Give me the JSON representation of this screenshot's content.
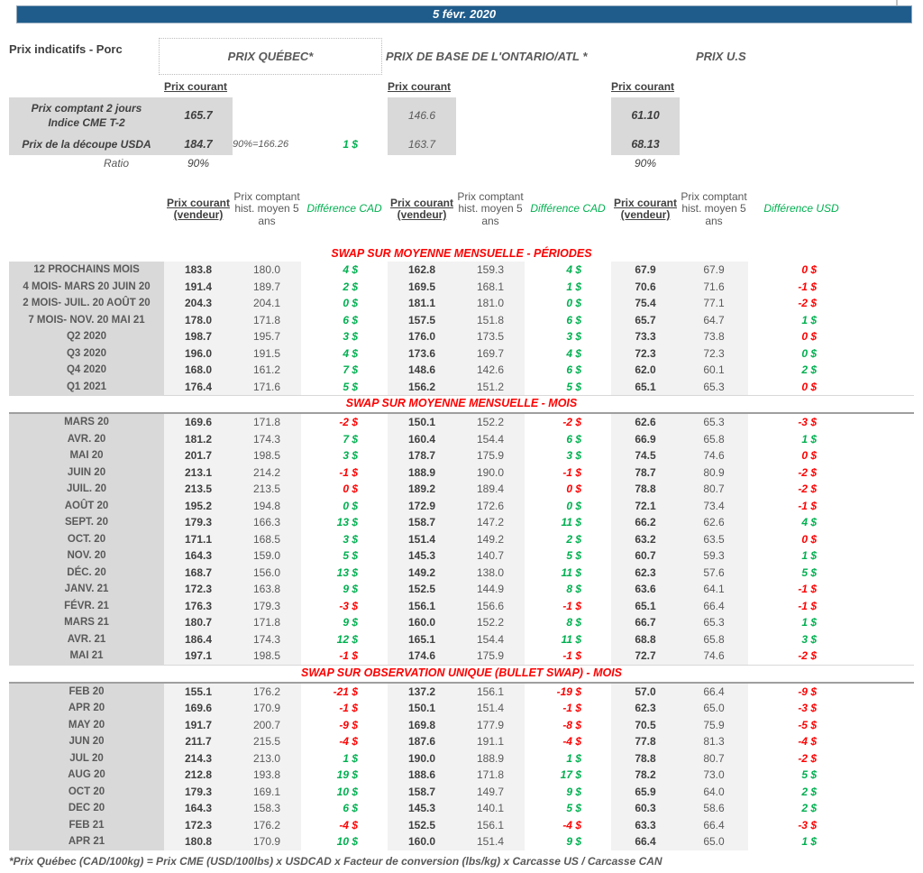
{
  "banner": {
    "date": "5 févr. 2020"
  },
  "header": {
    "title": "Prix indicatifs - Porc",
    "regions": {
      "quebec": "PRIX QUÉBEC*",
      "ontario": "PRIX DE BASE DE L'ONTARIO/ATL *",
      "us": "PRIX U.S"
    }
  },
  "columns": {
    "prix_courant": "Prix courant",
    "vendeur": "Prix courant (vendeur)",
    "hist": "Prix comptant hist. moyen 5 ans",
    "diff_cad": "Différence CAD",
    "diff_usd": "Différence USD"
  },
  "spot": {
    "comptant": {
      "label_line1": "Prix comptant 2 jours",
      "label_line2": "Indice CME T-2",
      "qc": "165.7",
      "on": "146.6",
      "us": "61.10"
    },
    "decoupe": {
      "label": "Prix de la découpe USDA",
      "qc": "184.7",
      "note": "90%=166.26",
      "diff": "1 $",
      "on": "163.7",
      "us": "68.13"
    },
    "ratio": {
      "label": "Ratio",
      "qc": "90%",
      "us": "90%"
    }
  },
  "table": {
    "sections": [
      {
        "title": "SWAP SUR MOYENNE MENSUELLE - PÉRIODES",
        "rows": [
          {
            "label": "12 PROCHAINS MOIS",
            "qc": [
              "183.8",
              "180.0",
              "4 $",
              "pos"
            ],
            "on": [
              "162.8",
              "159.3",
              "4 $",
              "pos"
            ],
            "us": [
              "67.9",
              "67.9",
              "0 $",
              "neg"
            ]
          },
          {
            "label": "4 MOIS- MARS 20 JUIN 20",
            "qc": [
              "191.4",
              "189.7",
              "2 $",
              "pos"
            ],
            "on": [
              "169.5",
              "168.1",
              "1 $",
              "pos"
            ],
            "us": [
              "70.6",
              "71.6",
              "-1 $",
              "neg"
            ]
          },
          {
            "label": "2 MOIS- JUIL. 20 AOÛT 20",
            "qc": [
              "204.3",
              "204.1",
              "0 $",
              "pos"
            ],
            "on": [
              "181.1",
              "181.0",
              "0 $",
              "pos"
            ],
            "us": [
              "75.4",
              "77.1",
              "-2 $",
              "neg"
            ]
          },
          {
            "label": "7 MOIS- NOV. 20 MAI 21",
            "qc": [
              "178.0",
              "171.8",
              "6 $",
              "pos"
            ],
            "on": [
              "157.5",
              "151.8",
              "6 $",
              "pos"
            ],
            "us": [
              "65.7",
              "64.7",
              "1 $",
              "pos"
            ]
          },
          {
            "label": "Q2 2020",
            "qc": [
              "198.7",
              "195.7",
              "3 $",
              "pos"
            ],
            "on": [
              "176.0",
              "173.5",
              "3 $",
              "pos"
            ],
            "us": [
              "73.3",
              "73.8",
              "0 $",
              "neg"
            ]
          },
          {
            "label": "Q3 2020",
            "qc": [
              "196.0",
              "191.5",
              "4 $",
              "pos"
            ],
            "on": [
              "173.6",
              "169.7",
              "4 $",
              "pos"
            ],
            "us": [
              "72.3",
              "72.3",
              "0 $",
              "pos"
            ]
          },
          {
            "label": "Q4 2020",
            "qc": [
              "168.0",
              "161.2",
              "7 $",
              "pos"
            ],
            "on": [
              "148.6",
              "142.6",
              "6 $",
              "pos"
            ],
            "us": [
              "62.0",
              "60.1",
              "2 $",
              "pos"
            ]
          },
          {
            "label": "Q1 2021",
            "qc": [
              "176.4",
              "171.6",
              "5 $",
              "pos"
            ],
            "on": [
              "156.2",
              "151.2",
              "5 $",
              "pos"
            ],
            "us": [
              "65.1",
              "65.3",
              "0 $",
              "neg"
            ]
          }
        ]
      },
      {
        "title": "SWAP SUR MOYENNE MENSUELLE - MOIS",
        "rows": [
          {
            "label": "MARS 20",
            "qc": [
              "169.6",
              "171.8",
              "-2 $",
              "neg"
            ],
            "on": [
              "150.1",
              "152.2",
              "-2 $",
              "neg"
            ],
            "us": [
              "62.6",
              "65.3",
              "-3 $",
              "neg"
            ]
          },
          {
            "label": "AVR. 20",
            "qc": [
              "181.2",
              "174.3",
              "7 $",
              "pos"
            ],
            "on": [
              "160.4",
              "154.4",
              "6 $",
              "pos"
            ],
            "us": [
              "66.9",
              "65.8",
              "1 $",
              "pos"
            ]
          },
          {
            "label": "MAI 20",
            "qc": [
              "201.7",
              "198.5",
              "3 $",
              "pos"
            ],
            "on": [
              "178.7",
              "175.9",
              "3 $",
              "pos"
            ],
            "us": [
              "74.5",
              "74.6",
              "0 $",
              "neg"
            ]
          },
          {
            "label": "JUIN 20",
            "qc": [
              "213.1",
              "214.2",
              "-1 $",
              "neg"
            ],
            "on": [
              "188.9",
              "190.0",
              "-1 $",
              "neg"
            ],
            "us": [
              "78.7",
              "80.9",
              "-2 $",
              "neg"
            ]
          },
          {
            "label": "JUIL. 20",
            "qc": [
              "213.5",
              "213.5",
              "0 $",
              "neg"
            ],
            "on": [
              "189.2",
              "189.4",
              "0 $",
              "neg"
            ],
            "us": [
              "78.8",
              "80.7",
              "-2 $",
              "neg"
            ]
          },
          {
            "label": "AOÛT 20",
            "qc": [
              "195.2",
              "194.8",
              "0 $",
              "pos"
            ],
            "on": [
              "172.9",
              "172.6",
              "0 $",
              "pos"
            ],
            "us": [
              "72.1",
              "73.4",
              "-1 $",
              "neg"
            ]
          },
          {
            "label": "SEPT. 20",
            "qc": [
              "179.3",
              "166.3",
              "13 $",
              "pos"
            ],
            "on": [
              "158.7",
              "147.2",
              "11 $",
              "pos"
            ],
            "us": [
              "66.2",
              "62.6",
              "4 $",
              "pos"
            ]
          },
          {
            "label": "OCT. 20",
            "qc": [
              "171.1",
              "168.5",
              "3 $",
              "pos"
            ],
            "on": [
              "151.4",
              "149.2",
              "2 $",
              "pos"
            ],
            "us": [
              "63.2",
              "63.5",
              "0 $",
              "neg"
            ]
          },
          {
            "label": "NOV. 20",
            "qc": [
              "164.3",
              "159.0",
              "5 $",
              "pos"
            ],
            "on": [
              "145.3",
              "140.7",
              "5 $",
              "pos"
            ],
            "us": [
              "60.7",
              "59.3",
              "1 $",
              "pos"
            ]
          },
          {
            "label": "DÉC. 20",
            "qc": [
              "168.7",
              "156.0",
              "13 $",
              "pos"
            ],
            "on": [
              "149.2",
              "138.0",
              "11 $",
              "pos"
            ],
            "us": [
              "62.3",
              "57.6",
              "5 $",
              "pos"
            ]
          },
          {
            "label": "JANV. 21",
            "qc": [
              "172.3",
              "163.8",
              "9 $",
              "pos"
            ],
            "on": [
              "152.5",
              "144.9",
              "8 $",
              "pos"
            ],
            "us": [
              "63.6",
              "64.1",
              "-1 $",
              "neg"
            ]
          },
          {
            "label": "FÉVR. 21",
            "qc": [
              "176.3",
              "179.3",
              "-3 $",
              "neg"
            ],
            "on": [
              "156.1",
              "156.6",
              "-1 $",
              "neg"
            ],
            "us": [
              "65.1",
              "66.4",
              "-1 $",
              "neg"
            ]
          },
          {
            "label": "MARS 21",
            "qc": [
              "180.7",
              "171.8",
              "9 $",
              "pos"
            ],
            "on": [
              "160.0",
              "152.2",
              "8 $",
              "pos"
            ],
            "us": [
              "66.7",
              "65.3",
              "1 $",
              "pos"
            ]
          },
          {
            "label": "AVR. 21",
            "qc": [
              "186.4",
              "174.3",
              "12 $",
              "pos"
            ],
            "on": [
              "165.1",
              "154.4",
              "11 $",
              "pos"
            ],
            "us": [
              "68.8",
              "65.8",
              "3 $",
              "pos"
            ]
          },
          {
            "label": "MAI 21",
            "qc": [
              "197.1",
              "198.5",
              "-1 $",
              "neg"
            ],
            "on": [
              "174.6",
              "175.9",
              "-1 $",
              "neg"
            ],
            "us": [
              "72.7",
              "74.6",
              "-2 $",
              "neg"
            ]
          }
        ]
      },
      {
        "title": "SWAP SUR OBSERVATION UNIQUE (BULLET SWAP) - MOIS",
        "rows": [
          {
            "label": "FEB 20",
            "qc": [
              "155.1",
              "176.2",
              "-21 $",
              "neg"
            ],
            "on": [
              "137.2",
              "156.1",
              "-19 $",
              "neg"
            ],
            "us": [
              "57.0",
              "66.4",
              "-9 $",
              "neg"
            ]
          },
          {
            "label": "APR 20",
            "qc": [
              "169.6",
              "170.9",
              "-1 $",
              "neg"
            ],
            "on": [
              "150.1",
              "151.4",
              "-1 $",
              "neg"
            ],
            "us": [
              "62.3",
              "65.0",
              "-3 $",
              "neg"
            ]
          },
          {
            "label": "MAY 20",
            "qc": [
              "191.7",
              "200.7",
              "-9 $",
              "neg"
            ],
            "on": [
              "169.8",
              "177.9",
              "-8 $",
              "neg"
            ],
            "us": [
              "70.5",
              "75.9",
              "-5 $",
              "neg"
            ]
          },
          {
            "label": "JUN 20",
            "qc": [
              "211.7",
              "215.5",
              "-4 $",
              "neg"
            ],
            "on": [
              "187.6",
              "191.1",
              "-4 $",
              "neg"
            ],
            "us": [
              "77.8",
              "81.3",
              "-4 $",
              "neg"
            ]
          },
          {
            "label": "JUL 20",
            "qc": [
              "214.3",
              "213.0",
              "1 $",
              "pos"
            ],
            "on": [
              "190.0",
              "188.9",
              "1 $",
              "pos"
            ],
            "us": [
              "78.8",
              "80.7",
              "-2 $",
              "neg"
            ]
          },
          {
            "label": "AUG 20",
            "qc": [
              "212.8",
              "193.8",
              "19 $",
              "pos"
            ],
            "on": [
              "188.6",
              "171.8",
              "17 $",
              "pos"
            ],
            "us": [
              "78.2",
              "73.0",
              "5 $",
              "pos"
            ]
          },
          {
            "label": "OCT 20",
            "qc": [
              "179.3",
              "169.1",
              "10 $",
              "pos"
            ],
            "on": [
              "158.7",
              "149.7",
              "9 $",
              "pos"
            ],
            "us": [
              "65.9",
              "64.0",
              "2 $",
              "pos"
            ]
          },
          {
            "label": "DEC 20",
            "qc": [
              "164.3",
              "158.3",
              "6 $",
              "pos"
            ],
            "on": [
              "145.3",
              "140.1",
              "5 $",
              "pos"
            ],
            "us": [
              "60.3",
              "58.6",
              "2 $",
              "pos"
            ]
          },
          {
            "label": "FEB 21",
            "qc": [
              "172.3",
              "176.2",
              "-4 $",
              "neg"
            ],
            "on": [
              "152.5",
              "156.1",
              "-4 $",
              "neg"
            ],
            "us": [
              "63.3",
              "66.4",
              "-3 $",
              "neg"
            ]
          },
          {
            "label": "APR 21",
            "qc": [
              "180.8",
              "170.9",
              "10 $",
              "pos"
            ],
            "on": [
              "160.0",
              "151.4",
              "9 $",
              "pos"
            ],
            "us": [
              "66.4",
              "65.0",
              "1 $",
              "pos"
            ]
          }
        ]
      }
    ]
  },
  "footnote": "*Prix Québec (CAD/100kg) = Prix CME (USD/100lbs) x USDCAD x Facteur de conversion (lbs/kg) x Carcasse US / Carcasse CAN",
  "colors": {
    "banner_blue": "#1f5c8c",
    "positive_green": "#00b050",
    "negative_red": "#ff0000",
    "label_gray": "#d9d9d9",
    "band_gray": "#f2f2f2"
  }
}
